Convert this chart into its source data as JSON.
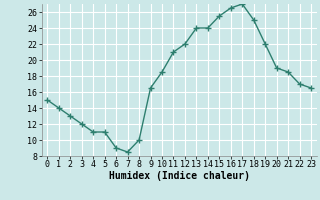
{
  "x": [
    0,
    1,
    2,
    3,
    4,
    5,
    6,
    7,
    8,
    9,
    10,
    11,
    12,
    13,
    14,
    15,
    16,
    17,
    18,
    19,
    20,
    21,
    22,
    23
  ],
  "y": [
    15,
    14,
    13,
    12,
    11,
    11,
    9,
    8.5,
    10,
    16.5,
    18.5,
    21,
    22,
    24,
    24,
    25.5,
    26.5,
    27,
    25,
    22,
    19,
    18.5,
    17,
    16.5
  ],
  "line_color": "#2e7f6f",
  "marker": "+",
  "marker_size": 4,
  "line_width": 1.0,
  "bg_color": "#cce8e8",
  "grid_color": "#ffffff",
  "xlabel": "Humidex (Indice chaleur)",
  "xlabel_fontsize": 7,
  "tick_fontsize": 6,
  "ylim": [
    8,
    27
  ],
  "xlim": [
    -0.5,
    23.5
  ],
  "yticks": [
    8,
    10,
    12,
    14,
    16,
    18,
    20,
    22,
    24,
    26
  ],
  "xticks": [
    0,
    1,
    2,
    3,
    4,
    5,
    6,
    7,
    8,
    9,
    10,
    11,
    12,
    13,
    14,
    15,
    16,
    17,
    18,
    19,
    20,
    21,
    22,
    23
  ]
}
